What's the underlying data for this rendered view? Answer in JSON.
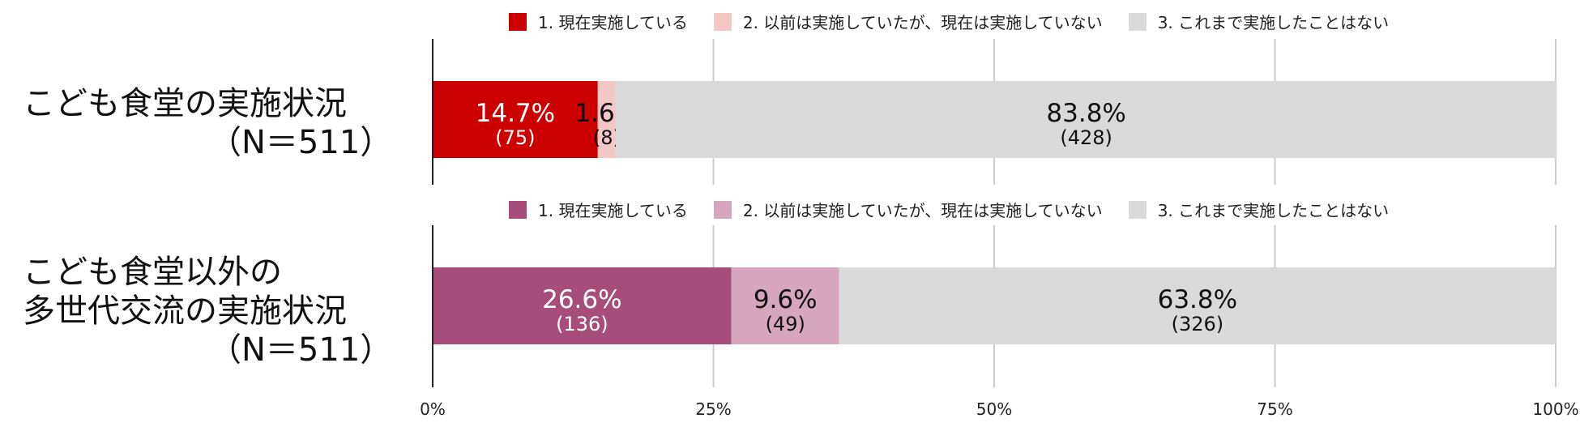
{
  "chart_data": [
    {
      "type": "bar",
      "orientation": "horizontal",
      "stacked": true,
      "percent": true,
      "category_label": [
        "こども食堂の実施状況",
        "（N＝511）"
      ],
      "series": [
        {
          "name": "1. 現在実施している",
          "value": 14.7,
          "count": 75,
          "value_label": "14.7%",
          "count_label": "(75)",
          "color": "#cc0000"
        },
        {
          "name": "2. 以前は実施していたが、現在は実施していない",
          "value": 1.6,
          "count": 8,
          "value_label": "1.6%",
          "count_label": "(8)",
          "color": "#f4c7c7"
        },
        {
          "name": "3. これまで実施したことはない",
          "value": 83.8,
          "count": 428,
          "value_label": "83.8%",
          "count_label": "(428)",
          "color": "#d9d9d9"
        }
      ],
      "xlim": [
        0,
        100
      ]
    },
    {
      "type": "bar",
      "orientation": "horizontal",
      "stacked": true,
      "percent": true,
      "category_label": [
        "こども食堂以外の",
        "多世代交流の実施状況",
        "（N＝511）"
      ],
      "series": [
        {
          "name": "1. 現在実施している",
          "value": 26.6,
          "count": 136,
          "value_label": "26.6%",
          "count_label": "(136)",
          "color": "#a64d79"
        },
        {
          "name": "2. 以前は実施していたが、現在は実施していない",
          "value": 9.6,
          "count": 49,
          "value_label": "9.6%",
          "count_label": "(49)",
          "color": "#d5a6bd"
        },
        {
          "name": "3. これまで実施したことはない",
          "value": 63.8,
          "count": 326,
          "value_label": "63.8%",
          "count_label": "(326)",
          "color": "#d9d9d9"
        }
      ],
      "xlim": [
        0,
        100
      ]
    }
  ],
  "x_ticks": [
    "0%",
    "25%",
    "50%",
    "75%",
    "100%"
  ],
  "grid": true
}
